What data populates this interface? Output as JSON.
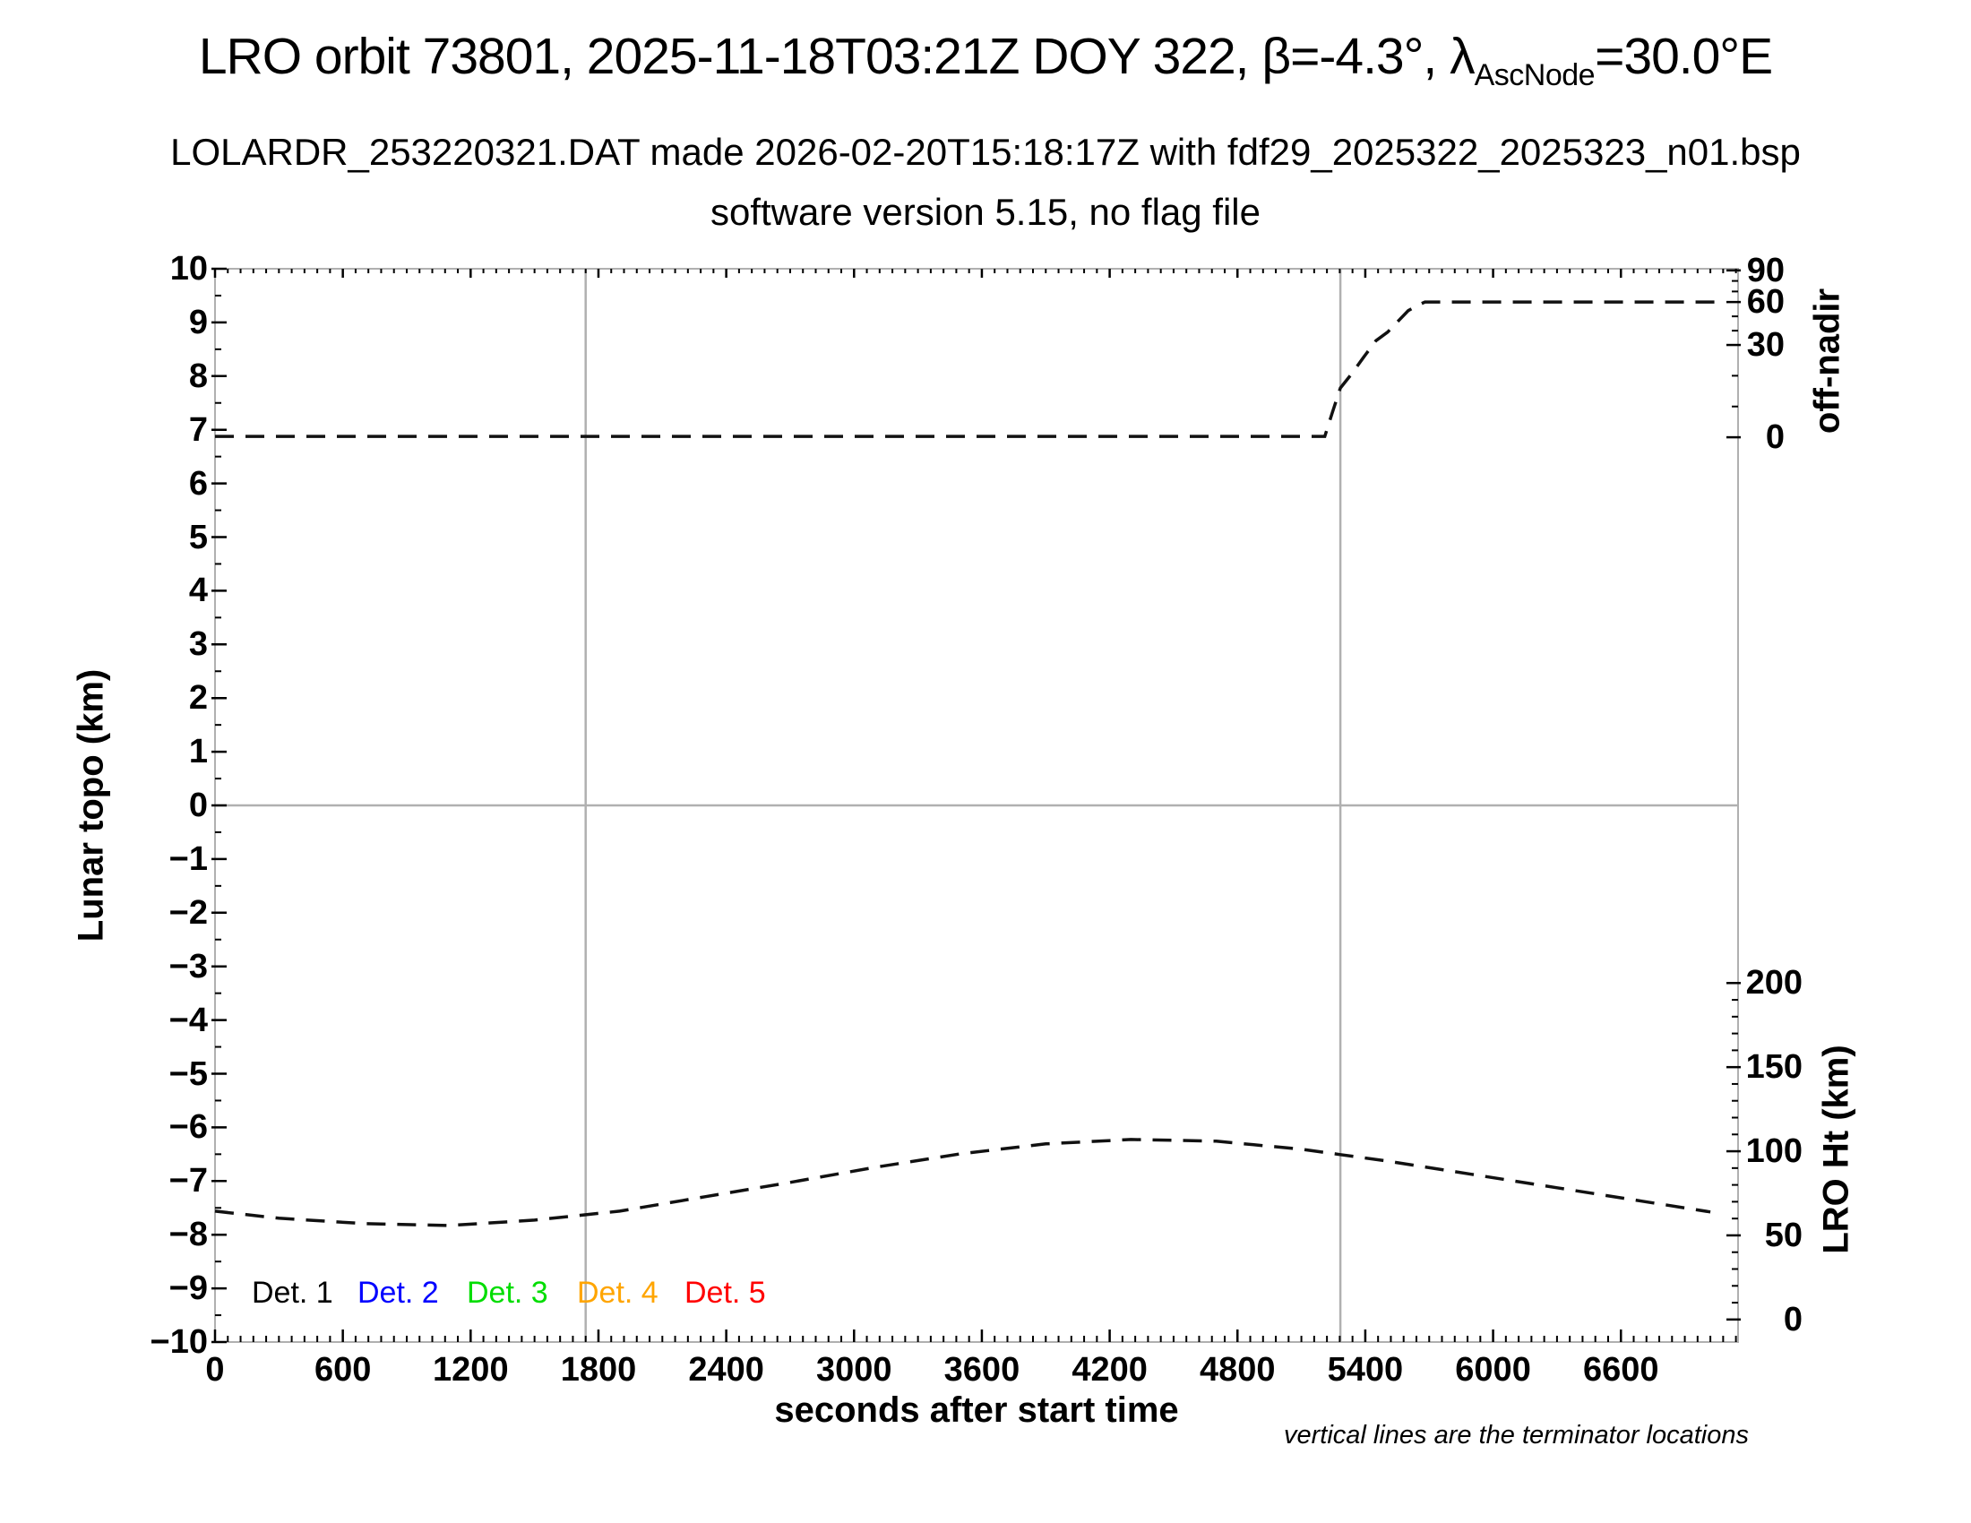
{
  "figure": {
    "title": {
      "prefix": "LRO orbit 73801, 2025-11-18T03:21Z DOY 322, β=-4.3°, λ",
      "subscript": "AscNode",
      "suffix": "=30.0°E"
    },
    "subtitle_line1": "LOLARDR_253220321.DAT made 2026-02-20T15:18:17Z with fdf29_2025322_2025323_n01.bsp",
    "subtitle_line2": "software version 5.15, no flag file",
    "footnote": "vertical lines are the terminator locations"
  },
  "legend": {
    "items": [
      {
        "label": "Det. 1",
        "color": "#000000"
      },
      {
        "label": "Det. 2",
        "color": "#0000ff"
      },
      {
        "label": "Det. 3",
        "color": "#00dd00"
      },
      {
        "label": "Det. 4",
        "color": "#ffa500"
      },
      {
        "label": "Det. 5",
        "color": "#ff0000"
      }
    ]
  },
  "chart_data": {
    "type": "line",
    "title": "LRO orbit 73801, 2025-11-18T03:21Z DOY 322, β=-4.3°, λAscNode=30.0°E",
    "xlabel": "seconds after start time",
    "ylabel_left": "Lunar topo (km)",
    "ylabel_right_top": "off-nadir",
    "ylabel_right_bottom": "LRO Ht (km)",
    "x_range": [
      0,
      7150
    ],
    "x_ticks": [
      0,
      600,
      1200,
      1800,
      2400,
      3000,
      3600,
      4200,
      4800,
      5400,
      6000,
      6600
    ],
    "x_minor_step": 60,
    "y_left_range": [
      -10,
      10
    ],
    "y_left_ticks": [
      10,
      9,
      8,
      7,
      6,
      5,
      4,
      3,
      2,
      1,
      0,
      -1,
      -2,
      -3,
      -4,
      -5,
      -6,
      -7,
      -8,
      -9,
      -10
    ],
    "y_left_minor_step": 0.5,
    "off_nadir_ticks_deg": [
      90,
      60,
      30,
      0
    ],
    "off_nadir_minor_ticks_deg": [
      10,
      20,
      40,
      50,
      70,
      80
    ],
    "lro_ht_ticks_km": [
      200,
      150,
      100,
      50,
      0
    ],
    "lro_ht_minor_step_km": 10,
    "grid": {
      "zero_line_lunar_topo": 0,
      "terminator_lines_s": [
        1740,
        5283
      ]
    },
    "axis_mappings": {
      "off_nadir_deg_to_lunar_topo_units": [
        [
          0,
          6.86
        ],
        [
          30,
          8.58
        ],
        [
          60,
          9.38
        ],
        [
          90,
          9.97
        ]
      ],
      "lro_ht_km_to_lunar_topo_units": [
        [
          0,
          -9.58
        ],
        [
          200,
          -3.31
        ]
      ]
    },
    "line_style": {
      "color": "#111111",
      "dash": "21 13",
      "width": 3.5
    },
    "gray_line_color": "#b0b0b0",
    "series": [
      {
        "name": "spacecraft off-nadir angle",
        "axis": "off-nadir (deg, right top axis)",
        "color": "#000000",
        "line_style": "dashed",
        "points_s_deg": [
          [
            0,
            0.3
          ],
          [
            5210,
            0.3
          ],
          [
            5245,
            8
          ],
          [
            5283,
            16
          ],
          [
            5340,
            21
          ],
          [
            5392,
            26
          ],
          [
            5450,
            33
          ],
          [
            5505,
            39
          ],
          [
            5550,
            46
          ],
          [
            5602,
            54
          ],
          [
            5650,
            58
          ],
          [
            5680,
            60
          ],
          [
            7080,
            60
          ]
        ]
      },
      {
        "name": "LRO height above surface",
        "axis": "LRO Ht (km, right bottom axis)",
        "color": "#000000",
        "line_style": "dashed",
        "points_s_km": [
          [
            0,
            64.4
          ],
          [
            300,
            60.2
          ],
          [
            700,
            57.0
          ],
          [
            1100,
            55.9
          ],
          [
            1500,
            59.1
          ],
          [
            1900,
            64.4
          ],
          [
            2300,
            73.0
          ],
          [
            2700,
            81.5
          ],
          [
            3100,
            90.5
          ],
          [
            3500,
            98.5
          ],
          [
            3900,
            104.4
          ],
          [
            4300,
            107.0
          ],
          [
            4700,
            106.0
          ],
          [
            5100,
            101.2
          ],
          [
            5283,
            98.0
          ],
          [
            5500,
            94.2
          ],
          [
            5900,
            86.3
          ],
          [
            6300,
            78.3
          ],
          [
            6700,
            70.3
          ],
          [
            7020,
            63.9
          ]
        ]
      }
    ],
    "legend_entries": [
      "Det. 1",
      "Det. 2",
      "Det. 3",
      "Det. 4",
      "Det. 5"
    ],
    "annotations": [
      "vertical lines are the terminator locations"
    ]
  }
}
